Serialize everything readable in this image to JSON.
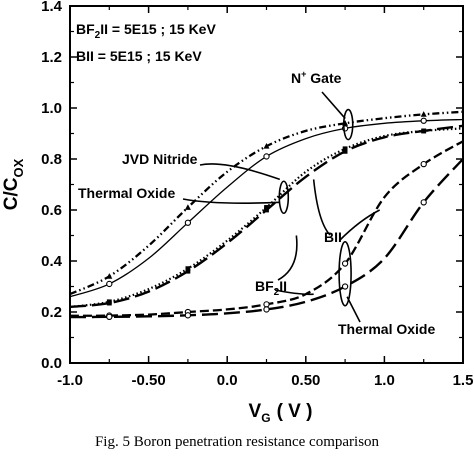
{
  "caption": "Fig. 5  Boron penetration resistance comparison",
  "chart_data": {
    "type": "line",
    "xlabel": "V",
    "xlabel_sub": "G",
    "xlabel_unit": "( V )",
    "ylabel": "C/C",
    "ylabel_sub": "OX",
    "xlim": [
      -1.0,
      1.5
    ],
    "ylim": [
      0.0,
      1.4
    ],
    "xticks": [
      -1.0,
      -0.5,
      0.0,
      0.5,
      1.0,
      1.5
    ],
    "xtick_labels": [
      "-1.0",
      "-0.50",
      "0.0",
      "0.50",
      "1.0",
      "1.5"
    ],
    "yticks": [
      0.0,
      0.2,
      0.4,
      0.6,
      0.8,
      1.0,
      1.2,
      1.4
    ],
    "ytick_labels": [
      "0.0",
      "0.2",
      "0.4",
      "0.6",
      "0.8",
      "1.0",
      "1.2",
      "1.4"
    ],
    "grid": false,
    "series": [
      {
        "name": "",
        "line_style": "dash-dot-dot",
        "marker": "filled-triangle",
        "color": "#000000",
        "x": [
          -1.0,
          -0.75,
          -0.5,
          -0.25,
          0.0,
          0.25,
          0.5,
          0.75,
          1.0,
          1.25,
          1.5
        ],
        "y": [
          0.27,
          0.34,
          0.46,
          0.61,
          0.75,
          0.85,
          0.91,
          0.94,
          0.96,
          0.975,
          0.985
        ],
        "markers_at": [
          -0.75,
          -0.25,
          0.25,
          0.75,
          1.25
        ]
      },
      {
        "name": "",
        "line_style": "solid",
        "marker": "open-circle",
        "color": "#000000",
        "x": [
          -1.0,
          -0.75,
          -0.5,
          -0.25,
          0.0,
          0.25,
          0.5,
          0.75,
          1.0,
          1.25,
          1.5
        ],
        "y": [
          0.26,
          0.31,
          0.41,
          0.55,
          0.69,
          0.81,
          0.88,
          0.92,
          0.94,
          0.95,
          0.955
        ],
        "markers_at": [
          -0.75,
          -0.25,
          0.25,
          0.75,
          1.25
        ]
      },
      {
        "name": "",
        "line_style": "dotted",
        "marker": "filled-square",
        "color": "#000000",
        "x": [
          -1.0,
          -0.75,
          -0.5,
          -0.25,
          0.0,
          0.25,
          0.5,
          0.75,
          1.0,
          1.25,
          1.5
        ],
        "y": [
          0.22,
          0.24,
          0.29,
          0.37,
          0.48,
          0.61,
          0.75,
          0.84,
          0.89,
          0.91,
          0.92
        ],
        "markers_at": [
          -0.75,
          -0.25,
          0.25,
          0.75,
          1.25
        ]
      },
      {
        "name": "",
        "line_style": "long-dash",
        "marker": "filled-square",
        "color": "#000000",
        "x": [
          -1.0,
          -0.75,
          -0.5,
          -0.25,
          0.0,
          0.25,
          0.5,
          0.75,
          1.0,
          1.25,
          1.5
        ],
        "y": [
          0.22,
          0.235,
          0.28,
          0.36,
          0.47,
          0.6,
          0.73,
          0.83,
          0.885,
          0.91,
          0.93
        ],
        "markers_at": [
          -0.75,
          -0.25,
          0.25,
          0.75,
          1.25
        ]
      },
      {
        "name": "",
        "line_style": "dashed",
        "marker": "open-circle",
        "color": "#000000",
        "x": [
          -1.0,
          -0.75,
          -0.5,
          -0.25,
          0.0,
          0.25,
          0.5,
          0.75,
          1.0,
          1.25,
          1.5
        ],
        "y": [
          0.185,
          0.186,
          0.19,
          0.2,
          0.21,
          0.23,
          0.27,
          0.39,
          0.65,
          0.78,
          0.87
        ],
        "markers_at": [
          -0.75,
          -0.25,
          0.25,
          0.75,
          1.25
        ]
      },
      {
        "name": "",
        "line_style": "long-dash",
        "marker": "open-circle",
        "color": "#000000",
        "x": [
          -1.0,
          -0.75,
          -0.5,
          -0.25,
          0.0,
          0.25,
          0.5,
          0.75,
          1.0,
          1.25,
          1.5
        ],
        "y": [
          0.18,
          0.181,
          0.183,
          0.187,
          0.195,
          0.21,
          0.24,
          0.3,
          0.41,
          0.63,
          0.8
        ],
        "markers_at": [
          -0.75,
          -0.25,
          0.25,
          0.75,
          1.25
        ]
      }
    ],
    "legend_lines": [
      {
        "main": "BF",
        "sub": "2",
        "rest": "II = 5E15 ; 15 KeV"
      },
      {
        "main": "BII = 5E15 ; 15 KeV",
        "sub": "",
        "rest": ""
      }
    ],
    "annotations": [
      {
        "name": "n-plus-gate",
        "parts": [
          {
            "t": "N"
          },
          {
            "t": "+",
            "sup": true
          },
          {
            "t": " Gate"
          }
        ]
      },
      {
        "name": "jvd-nitride",
        "parts": [
          {
            "t": "JVD Nitride"
          }
        ]
      },
      {
        "name": "thermal-oxide-upper",
        "parts": [
          {
            "t": "Thermal Oxide"
          }
        ]
      },
      {
        "name": "bii",
        "parts": [
          {
            "t": "BII"
          }
        ]
      },
      {
        "name": "bf2ii",
        "parts": [
          {
            "t": "BF"
          },
          {
            "t": "2",
            "sub": true
          },
          {
            "t": "II"
          }
        ]
      },
      {
        "name": "thermal-oxide-lower",
        "parts": [
          {
            "t": "Thermal Oxide"
          }
        ]
      }
    ]
  }
}
